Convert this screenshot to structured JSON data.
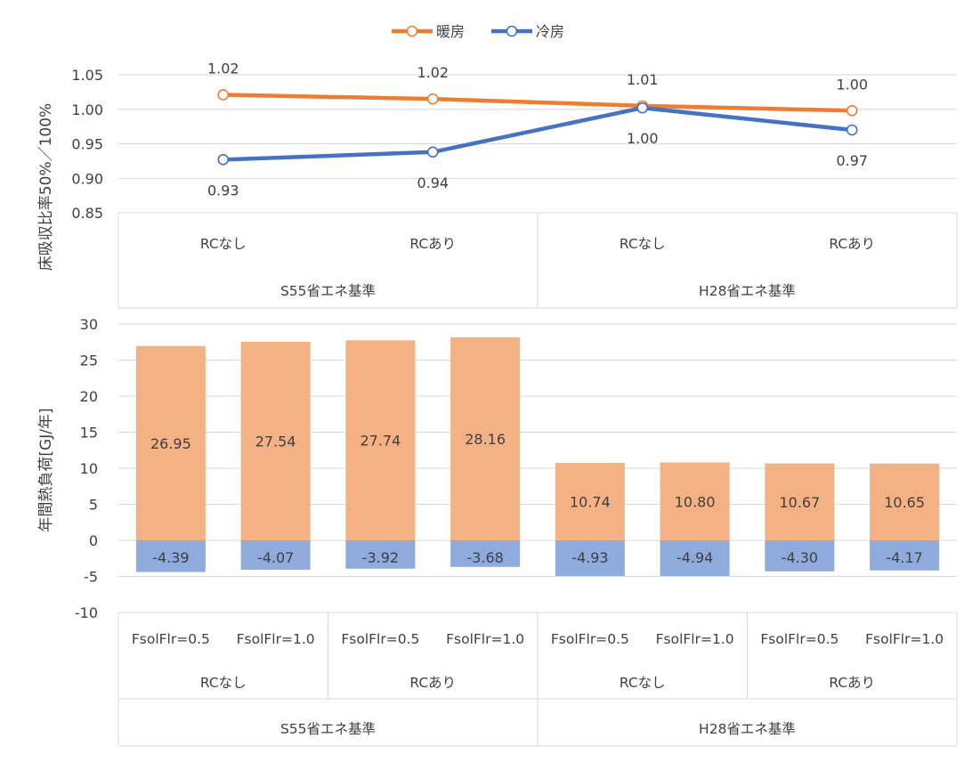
{
  "chart_data": [
    {
      "type": "line",
      "ylabel": "床吸収比率50%／100%",
      "ylim": [
        0.85,
        1.05
      ],
      "yticks": [
        0.85,
        0.9,
        0.95,
        1.0,
        1.05
      ],
      "legend_position": "top-center",
      "grid": true,
      "categories": [
        {
          "label": "RCなし",
          "group": "S55省エネ基準"
        },
        {
          "label": "RCあり",
          "group": "S55省エネ基準"
        },
        {
          "label": "RCなし",
          "group": "H28省エネ基準"
        },
        {
          "label": "RCあり",
          "group": "H28省エネ基準"
        }
      ],
      "groups": [
        "S55省エネ基準",
        "H28省エネ基準"
      ],
      "series": [
        {
          "name": "暖房",
          "color": "#ED7D31",
          "values": [
            1.021,
            1.015,
            1.005,
            0.998
          ],
          "labels": [
            "1.02",
            "1.02",
            "1.01",
            "1.00"
          ]
        },
        {
          "name": "冷房",
          "color": "#4472C4",
          "values": [
            0.927,
            0.938,
            1.002,
            0.97
          ],
          "labels": [
            "0.93",
            "0.94",
            "1.00",
            "0.97"
          ]
        }
      ]
    },
    {
      "type": "bar",
      "ylabel": "年間熱負荷[GJ/年]",
      "ylim": [
        -10,
        30
      ],
      "yticks": [
        -10,
        -5,
        0,
        5,
        10,
        15,
        20,
        25,
        30
      ],
      "grid": true,
      "categories": [
        {
          "label": "FsolFlr=0.5",
          "rc": "RCなし",
          "group": "S55省エネ基準"
        },
        {
          "label": "FsolFlr=1.0",
          "rc": "RCなし",
          "group": "S55省エネ基準"
        },
        {
          "label": "FsolFlr=0.5",
          "rc": "RCあり",
          "group": "S55省エネ基準"
        },
        {
          "label": "FsolFlr=1.0",
          "rc": "RCあり",
          "group": "S55省エネ基準"
        },
        {
          "label": "FsolFlr=0.5",
          "rc": "RCなし",
          "group": "H28省エネ基準"
        },
        {
          "label": "FsolFlr=1.0",
          "rc": "RCなし",
          "group": "H28省エネ基準"
        },
        {
          "label": "FsolFlr=0.5",
          "rc": "RCあり",
          "group": "H28省エネ基準"
        },
        {
          "label": "FsolFlr=1.0",
          "rc": "RCあり",
          "group": "H28省エネ基準"
        }
      ],
      "rc_labels": [
        "RCなし",
        "RCあり",
        "RCなし",
        "RCあり"
      ],
      "groups": [
        "S55省エネ基準",
        "H28省エネ基準"
      ],
      "series": [
        {
          "color": "#F4B183",
          "values": [
            26.95,
            27.54,
            27.74,
            28.16,
            10.74,
            10.8,
            10.67,
            10.65
          ],
          "labels": [
            "26.95",
            "27.54",
            "27.74",
            "28.16",
            "10.74",
            "10.80",
            "10.67",
            "10.65"
          ]
        },
        {
          "color": "#8FAADC",
          "values": [
            -4.39,
            -4.07,
            -3.92,
            -3.68,
            -4.93,
            -4.94,
            -4.3,
            -4.17
          ],
          "labels": [
            "-4.39",
            "-4.07",
            "-3.92",
            "-3.68",
            "-4.93",
            "-4.94",
            "-4.30",
            "-4.17"
          ]
        }
      ]
    }
  ]
}
